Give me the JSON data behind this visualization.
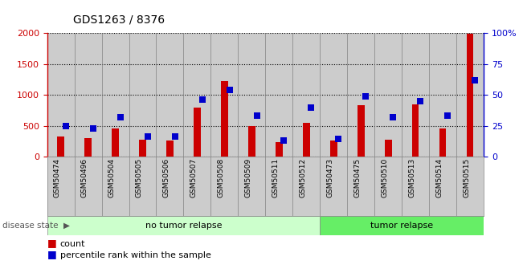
{
  "title": "GDS1263 / 8376",
  "categories": [
    "GSM50474",
    "GSM50496",
    "GSM50504",
    "GSM50505",
    "GSM50506",
    "GSM50507",
    "GSM50508",
    "GSM50509",
    "GSM50511",
    "GSM50512",
    "GSM50473",
    "GSM50475",
    "GSM50510",
    "GSM50513",
    "GSM50514",
    "GSM50515"
  ],
  "count_values": [
    330,
    305,
    460,
    270,
    260,
    790,
    1220,
    490,
    230,
    550,
    260,
    830,
    270,
    850,
    450,
    1990
  ],
  "percentile_values": [
    500,
    460,
    640,
    320,
    320,
    920,
    1080,
    660,
    260,
    800,
    280,
    980,
    640,
    900,
    660,
    1240
  ],
  "no_tumor_count": 10,
  "tumor_count": 6,
  "count_color": "#cc0000",
  "percentile_color": "#0000cc",
  "no_tumor_color": "#ccffcc",
  "tumor_color": "#66ee66",
  "bar_bg_color": "#cccccc",
  "ylim_left": [
    0,
    2000
  ],
  "ylim_right": [
    0,
    100
  ],
  "yticks_left": [
    0,
    500,
    1000,
    1500,
    2000
  ],
  "yticks_right": [
    0,
    25,
    50,
    75,
    100
  ],
  "ytick_labels_right": [
    "0",
    "25",
    "50",
    "75",
    "100%"
  ]
}
